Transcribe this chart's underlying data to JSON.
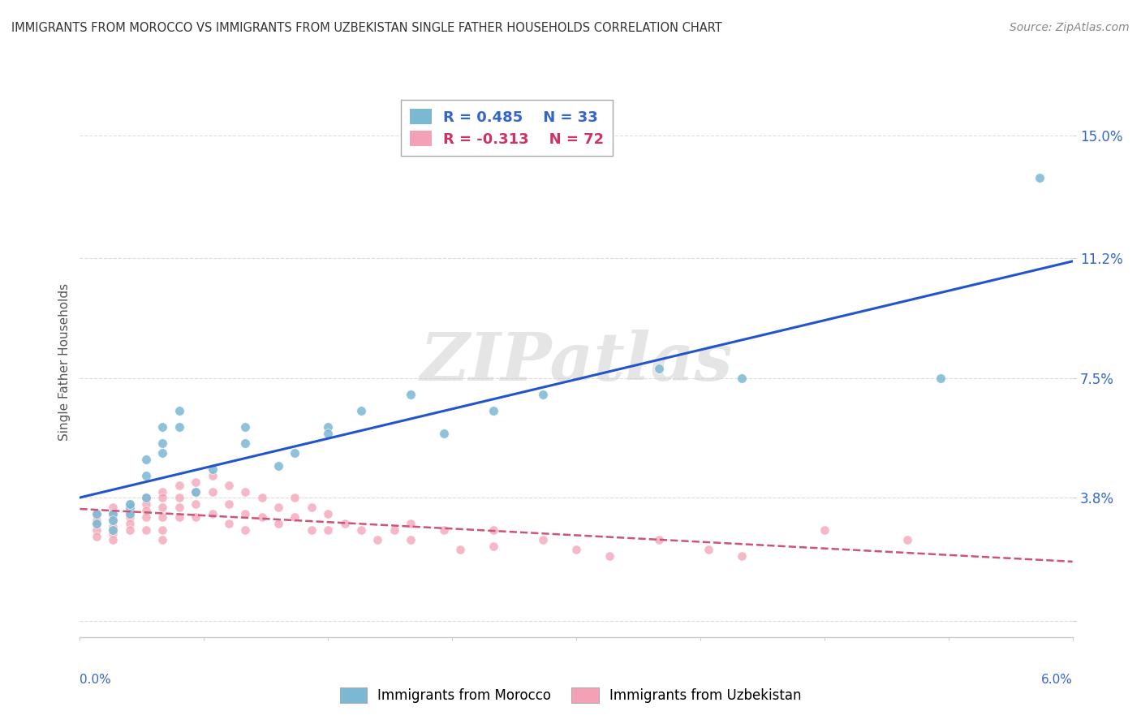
{
  "title": "IMMIGRANTS FROM MOROCCO VS IMMIGRANTS FROM UZBEKISTAN SINGLE FATHER HOUSEHOLDS CORRELATION CHART",
  "source": "Source: ZipAtlas.com",
  "ylabel": "Single Father Households",
  "xlim": [
    0.0,
    0.06
  ],
  "ylim": [
    -0.005,
    0.165
  ],
  "yticks": [
    0.0,
    0.038,
    0.075,
    0.112,
    0.15
  ],
  "ytick_labels": [
    "",
    "3.8%",
    "7.5%",
    "11.2%",
    "15.0%"
  ],
  "morocco_color": "#7bb8d4",
  "uzbekistan_color": "#f4a0b5",
  "morocco_R": 0.485,
  "morocco_N": 33,
  "uzbekistan_R": -0.313,
  "uzbekistan_N": 72,
  "watermark": "ZIPatlas",
  "morocco_points": [
    [
      0.001,
      0.033
    ],
    [
      0.001,
      0.03
    ],
    [
      0.002,
      0.033
    ],
    [
      0.002,
      0.031
    ],
    [
      0.002,
      0.028
    ],
    [
      0.003,
      0.035
    ],
    [
      0.003,
      0.033
    ],
    [
      0.003,
      0.036
    ],
    [
      0.004,
      0.05
    ],
    [
      0.004,
      0.045
    ],
    [
      0.004,
      0.038
    ],
    [
      0.005,
      0.06
    ],
    [
      0.005,
      0.055
    ],
    [
      0.005,
      0.052
    ],
    [
      0.006,
      0.065
    ],
    [
      0.006,
      0.06
    ],
    [
      0.007,
      0.04
    ],
    [
      0.008,
      0.047
    ],
    [
      0.01,
      0.055
    ],
    [
      0.01,
      0.06
    ],
    [
      0.012,
      0.048
    ],
    [
      0.013,
      0.052
    ],
    [
      0.015,
      0.06
    ],
    [
      0.015,
      0.058
    ],
    [
      0.017,
      0.065
    ],
    [
      0.02,
      0.07
    ],
    [
      0.022,
      0.058
    ],
    [
      0.025,
      0.065
    ],
    [
      0.028,
      0.07
    ],
    [
      0.035,
      0.078
    ],
    [
      0.04,
      0.075
    ],
    [
      0.052,
      0.075
    ],
    [
      0.058,
      0.137
    ]
  ],
  "uzbekistan_points": [
    [
      0.001,
      0.033
    ],
    [
      0.001,
      0.031
    ],
    [
      0.001,
      0.03
    ],
    [
      0.001,
      0.028
    ],
    [
      0.001,
      0.026
    ],
    [
      0.002,
      0.035
    ],
    [
      0.002,
      0.033
    ],
    [
      0.002,
      0.031
    ],
    [
      0.002,
      0.029
    ],
    [
      0.002,
      0.027
    ],
    [
      0.002,
      0.025
    ],
    [
      0.003,
      0.036
    ],
    [
      0.003,
      0.034
    ],
    [
      0.003,
      0.032
    ],
    [
      0.003,
      0.03
    ],
    [
      0.003,
      0.028
    ],
    [
      0.004,
      0.038
    ],
    [
      0.004,
      0.036
    ],
    [
      0.004,
      0.034
    ],
    [
      0.004,
      0.032
    ],
    [
      0.004,
      0.028
    ],
    [
      0.005,
      0.04
    ],
    [
      0.005,
      0.038
    ],
    [
      0.005,
      0.035
    ],
    [
      0.005,
      0.032
    ],
    [
      0.005,
      0.028
    ],
    [
      0.005,
      0.025
    ],
    [
      0.006,
      0.042
    ],
    [
      0.006,
      0.038
    ],
    [
      0.006,
      0.035
    ],
    [
      0.006,
      0.032
    ],
    [
      0.007,
      0.043
    ],
    [
      0.007,
      0.04
    ],
    [
      0.007,
      0.036
    ],
    [
      0.007,
      0.032
    ],
    [
      0.008,
      0.045
    ],
    [
      0.008,
      0.04
    ],
    [
      0.008,
      0.033
    ],
    [
      0.009,
      0.042
    ],
    [
      0.009,
      0.036
    ],
    [
      0.009,
      0.03
    ],
    [
      0.01,
      0.04
    ],
    [
      0.01,
      0.033
    ],
    [
      0.01,
      0.028
    ],
    [
      0.011,
      0.038
    ],
    [
      0.011,
      0.032
    ],
    [
      0.012,
      0.035
    ],
    [
      0.012,
      0.03
    ],
    [
      0.013,
      0.038
    ],
    [
      0.013,
      0.032
    ],
    [
      0.014,
      0.035
    ],
    [
      0.014,
      0.028
    ],
    [
      0.015,
      0.033
    ],
    [
      0.015,
      0.028
    ],
    [
      0.016,
      0.03
    ],
    [
      0.017,
      0.028
    ],
    [
      0.018,
      0.025
    ],
    [
      0.019,
      0.028
    ],
    [
      0.02,
      0.03
    ],
    [
      0.02,
      0.025
    ],
    [
      0.022,
      0.028
    ],
    [
      0.023,
      0.022
    ],
    [
      0.025,
      0.028
    ],
    [
      0.025,
      0.023
    ],
    [
      0.028,
      0.025
    ],
    [
      0.03,
      0.022
    ],
    [
      0.032,
      0.02
    ],
    [
      0.035,
      0.025
    ],
    [
      0.038,
      0.022
    ],
    [
      0.04,
      0.02
    ],
    [
      0.045,
      0.028
    ],
    [
      0.05,
      0.025
    ]
  ]
}
